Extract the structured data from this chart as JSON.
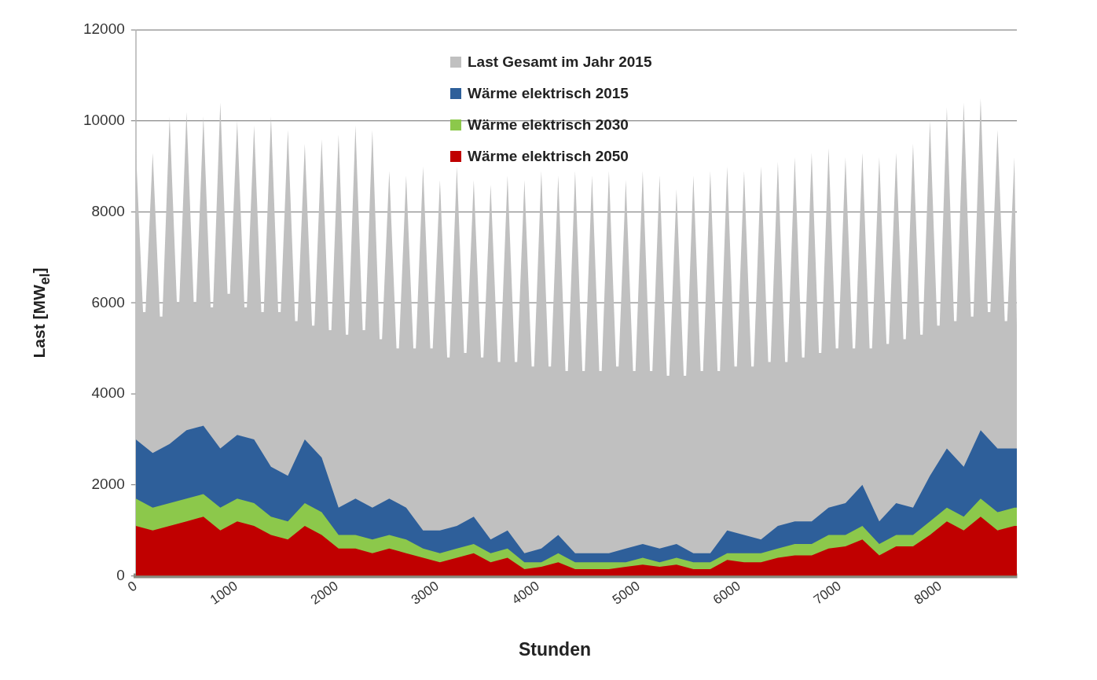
{
  "chart_data": {
    "type": "area",
    "xlabel": "Stunden",
    "ylabel": "Last [MW$_{el}$]",
    "xlim": [
      0,
      8760
    ],
    "xticks": [
      0,
      1000,
      2000,
      3000,
      4000,
      5000,
      6000,
      7000,
      8000
    ],
    "ylim": [
      0,
      12000
    ],
    "yticks": [
      0,
      2000,
      4000,
      6000,
      8000,
      10000,
      12000
    ],
    "grid": "y",
    "legend": "top",
    "x": [
      0,
      168,
      336,
      504,
      672,
      840,
      1008,
      1176,
      1344,
      1512,
      1680,
      1848,
      2016,
      2184,
      2352,
      2520,
      2688,
      2856,
      3024,
      3192,
      3360,
      3528,
      3696,
      3864,
      4032,
      4200,
      4368,
      4536,
      4704,
      4872,
      5040,
      5208,
      5376,
      5544,
      5712,
      5880,
      6048,
      6216,
      6384,
      6552,
      6720,
      6888,
      7056,
      7224,
      7392,
      7560,
      7728,
      7896,
      8064,
      8232,
      8400,
      8568,
      8736,
      8760
    ],
    "series": [
      {
        "name": "Last Gesamt im Jahr 2015",
        "color": "#c0c0c0",
        "x": [
          0,
          72,
          96,
          168,
          240,
          264,
          336,
          408,
          432,
          504,
          576,
          600,
          672,
          744,
          768,
          840,
          912,
          936,
          1008,
          1080,
          1104,
          1176,
          1248,
          1272,
          1344,
          1416,
          1440,
          1512,
          1584,
          1608,
          1680,
          1752,
          1776,
          1848,
          1920,
          1944,
          2016,
          2088,
          2112,
          2184,
          2256,
          2280,
          2352,
          2424,
          2448,
          2520,
          2592,
          2616,
          2688,
          2760,
          2784,
          2856,
          2928,
          2952,
          3024,
          3096,
          3120,
          3192,
          3264,
          3288,
          3360,
          3432,
          3456,
          3528,
          3600,
          3624,
          3696,
          3768,
          3792,
          3864,
          3936,
          3960,
          4032,
          4104,
          4128,
          4200,
          4272,
          4296,
          4368,
          4440,
          4464,
          4536,
          4608,
          4632,
          4704,
          4776,
          4800,
          4872,
          4944,
          4968,
          5040,
          5112,
          5136,
          5208,
          5280,
          5304,
          5376,
          5448,
          5472,
          5544,
          5616,
          5640,
          5712,
          5784,
          5808,
          5880,
          5952,
          5976,
          6048,
          6120,
          6144,
          6216,
          6288,
          6312,
          6384,
          6456,
          6480,
          6552,
          6624,
          6648,
          6720,
          6792,
          6816,
          6888,
          6960,
          6984,
          7056,
          7128,
          7152,
          7224,
          7296,
          7320,
          7392,
          7464,
          7488,
          7560,
          7632,
          7656,
          7728,
          7800,
          7824,
          7896,
          7968,
          7992,
          8064,
          8136,
          8160,
          8232,
          8304,
          8328,
          8400,
          8472,
          8496,
          8568,
          8640,
          8664,
          8736,
          8760
        ],
        "values": [
          9400,
          5800,
          5800,
          9300,
          5700,
          5700,
          10100,
          6000,
          6000,
          10200,
          6000,
          6000,
          10100,
          5900,
          5900,
          10400,
          6200,
          6200,
          10000,
          5900,
          5900,
          9900,
          5800,
          5800,
          10100,
          5800,
          5800,
          9800,
          5600,
          5600,
          9500,
          5500,
          5500,
          9600,
          5400,
          5400,
          9700,
          5300,
          5300,
          9900,
          5400,
          5400,
          9800,
          5200,
          5200,
          8900,
          5000,
          5000,
          8800,
          5000,
          5000,
          9000,
          5000,
          5000,
          8700,
          4800,
          4800,
          9000,
          4900,
          4900,
          8700,
          4800,
          4800,
          8600,
          4700,
          4700,
          8800,
          4700,
          4700,
          8700,
          4600,
          4600,
          8900,
          4600,
          4600,
          8800,
          4500,
          4500,
          8900,
          4500,
          4500,
          8800,
          4500,
          4500,
          8900,
          4600,
          4600,
          8700,
          4500,
          4500,
          8900,
          4500,
          4500,
          8800,
          4400,
          4400,
          8500,
          4400,
          4400,
          8800,
          4500,
          4500,
          8900,
          4500,
          4500,
          9000,
          4600,
          4600,
          8900,
          4600,
          4600,
          9000,
          4700,
          4700,
          9100,
          4700,
          4700,
          9200,
          4800,
          4800,
          9300,
          4900,
          4900,
          9400,
          5000,
          5000,
          9200,
          5000,
          5000,
          9300,
          5000,
          5000,
          9200,
          5100,
          5100,
          9300,
          5200,
          5200,
          9500,
          5300,
          5300,
          10000,
          5500,
          5500,
          10300,
          5600,
          5600,
          10400,
          5700,
          5700,
          10500,
          5800,
          5800,
          9800,
          5600,
          5600,
          9200,
          5500
        ]
      },
      {
        "name": "Wärme elektrisch 2015",
        "color": "#2e5f9a",
        "values": [
          3000,
          2700,
          2900,
          3200,
          3300,
          2800,
          3100,
          3000,
          2400,
          2200,
          3000,
          2600,
          1500,
          1700,
          1500,
          1700,
          1500,
          1000,
          1000,
          1100,
          1300,
          800,
          1000,
          500,
          600,
          900,
          500,
          500,
          500,
          600,
          700,
          600,
          700,
          500,
          500,
          1000,
          900,
          800,
          1100,
          1200,
          1200,
          1500,
          1600,
          2000,
          1200,
          1600,
          1500,
          2200,
          2800,
          2400,
          3200,
          2800,
          2800,
          2800
        ]
      },
      {
        "name": "Wärme elektrisch 2030",
        "color": "#8cc84b",
        "values": [
          1700,
          1500,
          1600,
          1700,
          1800,
          1500,
          1700,
          1600,
          1300,
          1200,
          1600,
          1400,
          900,
          900,
          800,
          900,
          800,
          600,
          500,
          600,
          700,
          500,
          600,
          300,
          300,
          500,
          300,
          300,
          300,
          300,
          400,
          300,
          400,
          300,
          300,
          500,
          500,
          500,
          600,
          700,
          700,
          900,
          900,
          1100,
          700,
          900,
          900,
          1200,
          1500,
          1300,
          1700,
          1400,
          1500,
          1500
        ]
      },
      {
        "name": "Wärme elektrisch 2050",
        "color": "#c00000",
        "values": [
          1100,
          1000,
          1100,
          1200,
          1300,
          1000,
          1200,
          1100,
          900,
          800,
          1100,
          900,
          600,
          600,
          500,
          600,
          500,
          400,
          300,
          400,
          500,
          300,
          400,
          150,
          200,
          300,
          150,
          150,
          150,
          200,
          250,
          200,
          250,
          150,
          150,
          350,
          300,
          300,
          400,
          450,
          450,
          600,
          650,
          800,
          450,
          650,
          650,
          900,
          1200,
          1000,
          1300,
          1000,
          1100,
          1100
        ]
      }
    ]
  }
}
